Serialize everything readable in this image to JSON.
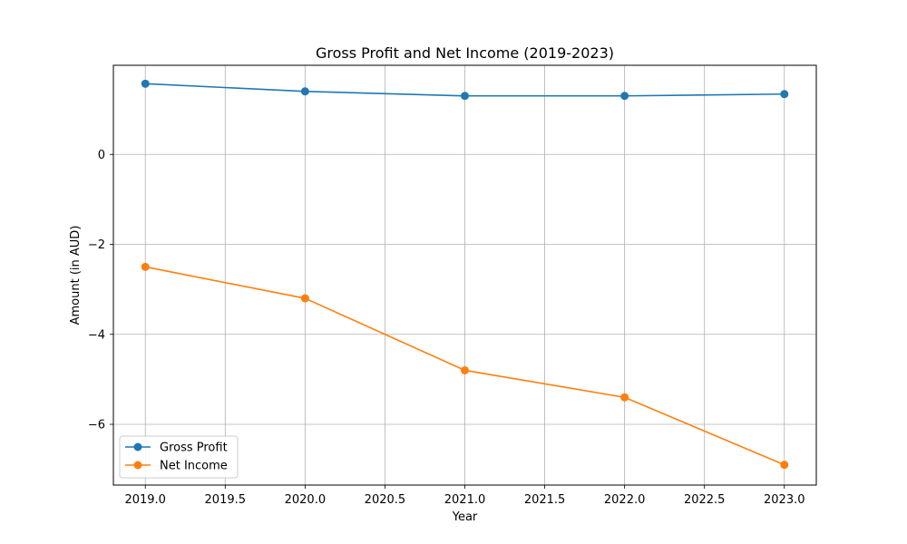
{
  "chart_data": {
    "type": "line",
    "title": "Gross Profit and Net Income (2019-2023)",
    "xlabel": "Year",
    "ylabel": "Amount (in AUD)",
    "x": [
      2019,
      2020,
      2021,
      2022,
      2023
    ],
    "xticks": [
      2019.0,
      2019.5,
      2020.0,
      2020.5,
      2021.0,
      2021.5,
      2022.0,
      2022.5,
      2023.0
    ],
    "xtick_labels": [
      "2019.0",
      "2019.5",
      "2020.0",
      "2020.5",
      "2021.0",
      "2021.5",
      "2022.0",
      "2022.5",
      "2023.0"
    ],
    "yticks": [
      -6,
      -4,
      -2,
      0
    ],
    "ytick_labels": [
      "−6",
      "−4",
      "−2",
      "0"
    ],
    "xlim": [
      2018.8,
      2023.2
    ],
    "ylim": [
      -7.35,
      1.98
    ],
    "grid": true,
    "legend_position": "lower-left",
    "series": [
      {
        "name": "Gross Profit",
        "color": "#1f77b4",
        "marker": "circle",
        "values": [
          1.57,
          1.4,
          1.3,
          1.3,
          1.34
        ]
      },
      {
        "name": "Net Income",
        "color": "#ff7f0e",
        "marker": "circle",
        "values": [
          -2.5,
          -3.2,
          -4.8,
          -5.4,
          -6.9
        ]
      }
    ]
  }
}
